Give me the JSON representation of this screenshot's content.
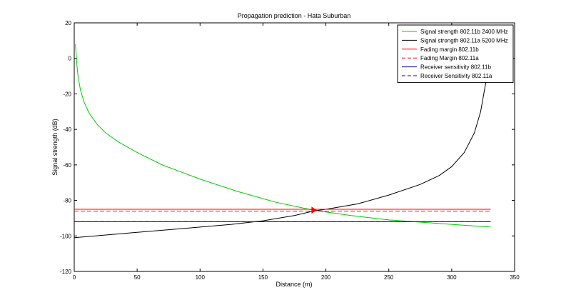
{
  "chart_data": {
    "type": "line",
    "title": "Propagation prediction - Hata Suburban",
    "xlabel": "Distance (m)",
    "ylabel": "Signal strength (dB)",
    "xlim": [
      0,
      350
    ],
    "ylim": [
      -120,
      20
    ],
    "xticks": [
      0,
      50,
      100,
      150,
      200,
      250,
      300,
      350
    ],
    "yticks": [
      20,
      0,
      -20,
      -40,
      -60,
      -80,
      -100,
      -120
    ],
    "grid": false,
    "legend_position": "top-right",
    "series": [
      {
        "name": "Signal strength 802.11b 2400 MHz",
        "color": "#00cc00",
        "dash": "solid",
        "x": [
          1,
          2,
          3,
          5,
          8,
          12,
          18,
          25,
          35,
          50,
          70,
          100,
          130,
          160,
          190,
          220,
          250,
          280,
          310,
          331
        ],
        "y": [
          8,
          -3,
          -10,
          -18,
          -25,
          -31,
          -37,
          -42,
          -47,
          -53,
          -60,
          -68,
          -75,
          -81,
          -85.5,
          -88.5,
          -91,
          -92.5,
          -94,
          -95
        ]
      },
      {
        "name": "Signal strength 802.11a 5200 MHz",
        "color": "#000000",
        "dash": "solid",
        "x": [
          0,
          25,
          50,
          75,
          100,
          125,
          150,
          175,
          190,
          200,
          225,
          250,
          275,
          290,
          300,
          310,
          318,
          323,
          327,
          329,
          330
        ],
        "y": [
          -101,
          -99.5,
          -98,
          -96.5,
          -95,
          -93.5,
          -91.5,
          -88.5,
          -86,
          -85,
          -82,
          -77,
          -71,
          -66,
          -61,
          -53,
          -42,
          -30,
          -14,
          -5,
          0
        ]
      },
      {
        "name": "Fading margin 802.11b",
        "color": "#ff0000",
        "dash": "solid",
        "x": [
          0,
          331
        ],
        "y": [
          -85,
          -85
        ]
      },
      {
        "name": "Fading Margin 802.11a",
        "color": "#ff0000",
        "dash": "dashed",
        "x": [
          0,
          331
        ],
        "y": [
          -86,
          -86
        ]
      },
      {
        "name": "Receiver sensitivity 802.11b",
        "color": "#00008b",
        "dash": "solid",
        "x": [
          0,
          331
        ],
        "y": [
          -92,
          -92
        ]
      },
      {
        "name": "Receiver Sensitivity 802.11a",
        "color": "#0000ff",
        "dash": "dashed",
        "x": [
          0,
          331
        ],
        "y": [
          -92,
          -92
        ]
      }
    ],
    "markers": [
      {
        "x": 190,
        "y": -85.5,
        "color": "#ff0000",
        "shape": "triangle"
      }
    ]
  }
}
